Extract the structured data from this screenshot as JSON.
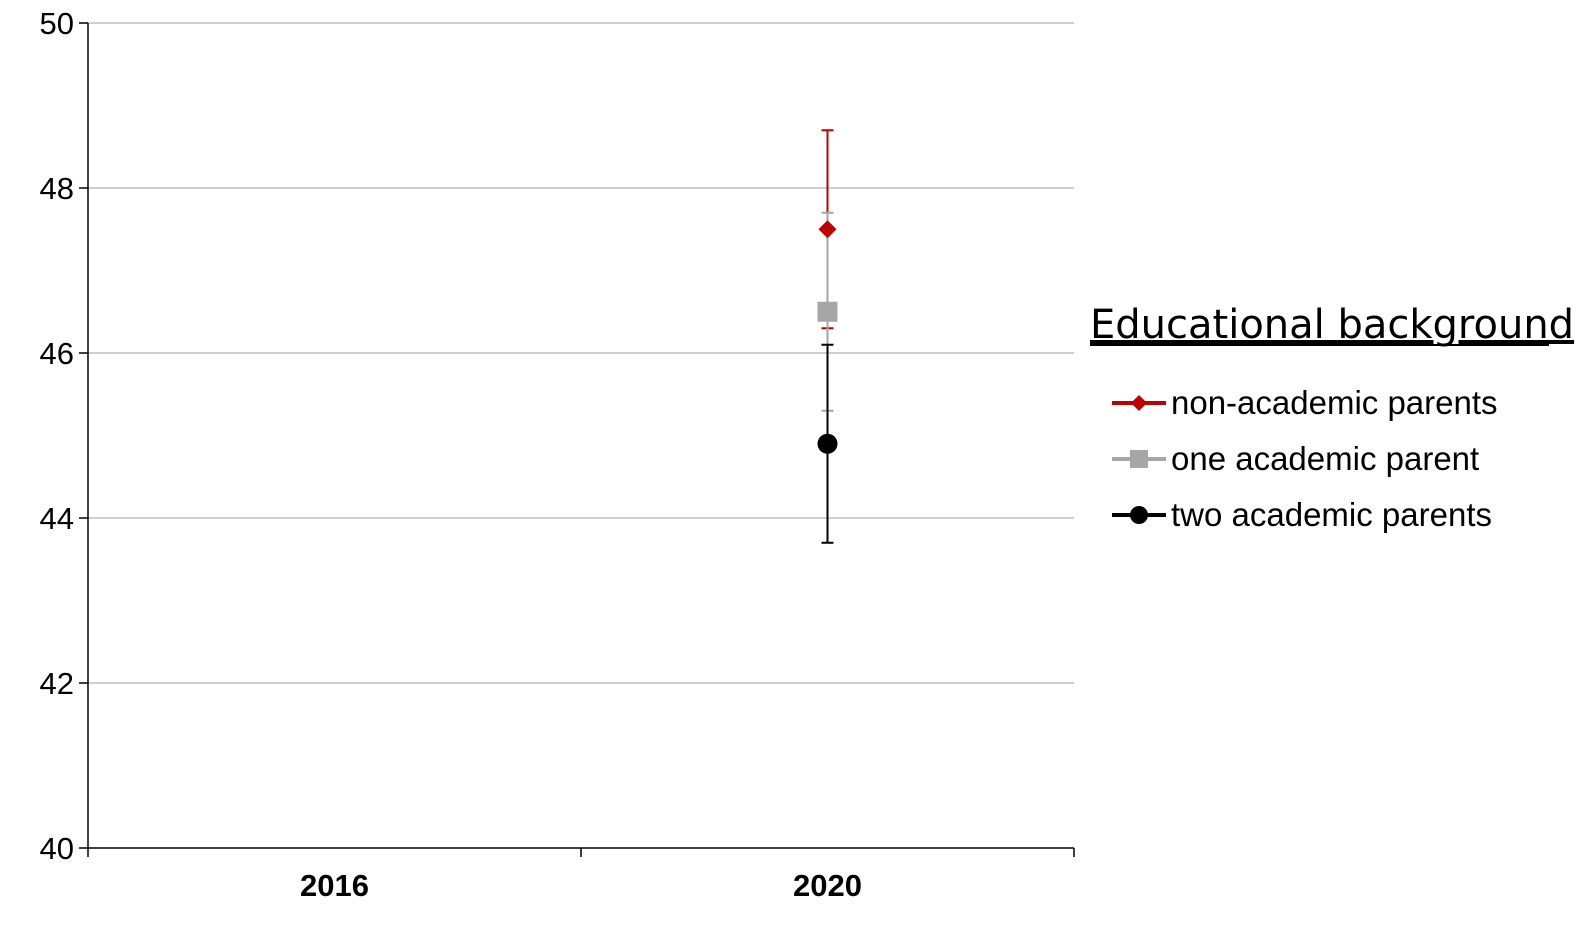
{
  "chart_data": {
    "type": "scatter",
    "title": "",
    "xlabel": "",
    "ylabel": "",
    "categories": [
      "2016",
      "2020"
    ],
    "ylim": [
      40,
      50
    ],
    "yticks": [
      40,
      42,
      44,
      46,
      48,
      50
    ],
    "grid": true,
    "legend_placement": "right",
    "legend_title": "Educational background",
    "series": [
      {
        "name": "non-academic parents",
        "color": "#C00000",
        "marker": "diamond",
        "points": [
          {
            "x": "2020",
            "y": 47.5,
            "err_low": 46.3,
            "err_high": 48.7
          }
        ]
      },
      {
        "name": "one academic parent",
        "color": "#A6A6A6",
        "marker": "square",
        "points": [
          {
            "x": "2020",
            "y": 46.5,
            "err_low": 45.3,
            "err_high": 47.7
          }
        ]
      },
      {
        "name": "two academic parents",
        "color": "#000000",
        "marker": "circle",
        "points": [
          {
            "x": "2020",
            "y": 44.9,
            "err_low": 43.7,
            "err_high": 46.1
          }
        ]
      }
    ]
  }
}
